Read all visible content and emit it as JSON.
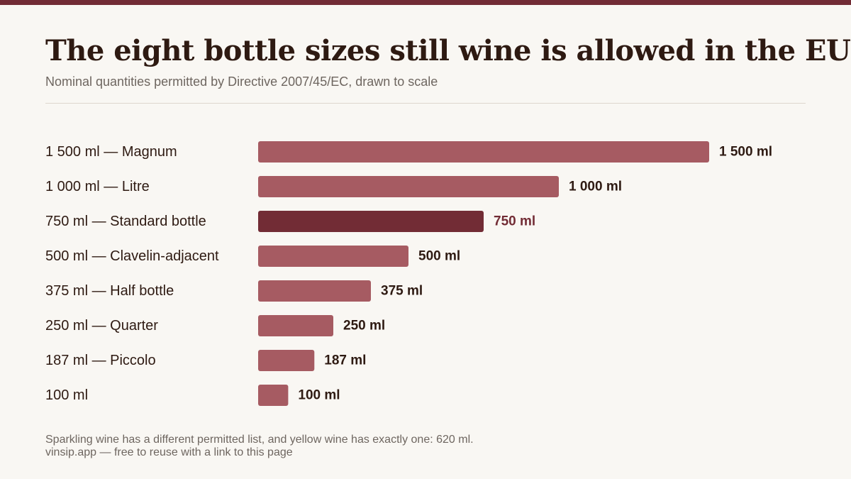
{
  "header": {
    "title": "The eight bottle sizes still wine is allowed in the EU",
    "subtitle": "Nominal quantities permitted by Directive 2007/45/EC, drawn to scale"
  },
  "footer": {
    "note": "Sparkling wine has a different permitted list, and yellow wine has exactly one: 620 ml.",
    "credit": "vinsip.app — free to reuse with a link to this page"
  },
  "colors": {
    "bar": "#a65b62",
    "highlight": "#722c35",
    "text": "#2e1a12",
    "muted": "#6e6660"
  },
  "chart_data": {
    "type": "bar",
    "orientation": "horizontal",
    "title": "The eight bottle sizes still wine is allowed in the EU",
    "subtitle": "Nominal quantities permitted by Directive 2007/45/EC, drawn to scale",
    "xlabel": "",
    "ylabel": "",
    "xlim": [
      0,
      1500
    ],
    "grid": false,
    "categories": [
      "1 500 ml — Magnum",
      "1 000 ml — Litre",
      "750 ml — Standard bottle",
      "500 ml — Clavelin-adjacent",
      "375 ml — Half bottle",
      "250 ml — Quarter",
      "187 ml — Piccolo",
      "100 ml"
    ],
    "values": [
      1500,
      1000,
      750,
      500,
      375,
      250,
      187,
      100
    ],
    "value_labels": [
      "1 500 ml",
      "1 000 ml",
      "750 ml",
      "500 ml",
      "375 ml",
      "250 ml",
      "187 ml",
      "100 ml"
    ],
    "highlight_index": 2
  }
}
